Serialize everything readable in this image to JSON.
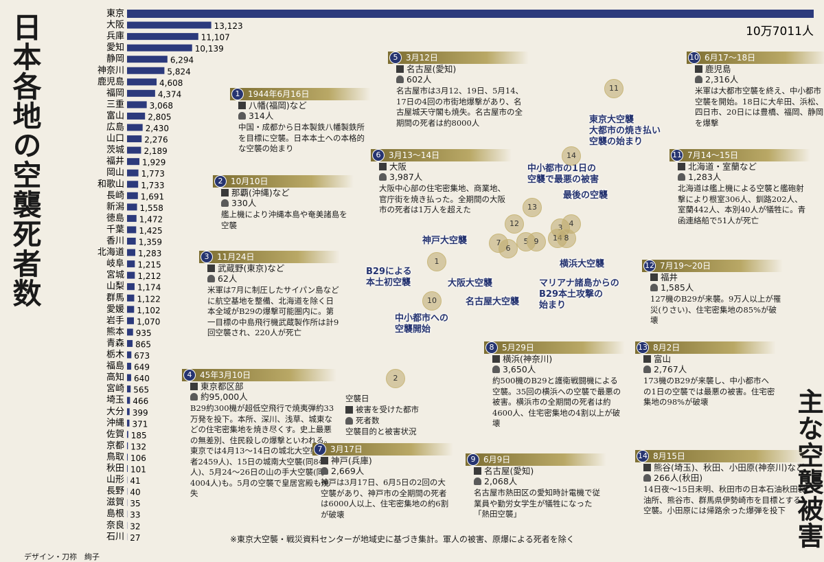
{
  "chart_data": {
    "type": "bar",
    "title": "日本各地の空襲死者数",
    "categories": [
      "東京",
      "大阪",
      "兵庫",
      "愛知",
      "静岡",
      "神奈川",
      "鹿児島",
      "福岡",
      "三重",
      "富山",
      "広島",
      "山口",
      "茨城",
      "福井",
      "岡山",
      "和歌山",
      "長崎",
      "新潟",
      "徳島",
      "千葉",
      "香川",
      "北海道",
      "岐阜",
      "宮城",
      "山梨",
      "群馬",
      "愛媛",
      "岩手",
      "熊本",
      "青森",
      "栃木",
      "福島",
      "高知",
      "宮崎",
      "埼玉",
      "大分",
      "沖縄",
      "佐賀",
      "京都",
      "鳥取",
      "秋田",
      "山形",
      "長野",
      "滋賀",
      "島根",
      "奈良",
      "石川"
    ],
    "values": [
      107011,
      13123,
      11107,
      10139,
      6294,
      5824,
      4608,
      4374,
      3068,
      2805,
      2430,
      2276,
      2189,
      1929,
      1773,
      1733,
      1691,
      1558,
      1472,
      1425,
      1359,
      1283,
      1215,
      1212,
      1174,
      1122,
      1102,
      1070,
      935,
      865,
      673,
      649,
      640,
      565,
      466,
      399,
      371,
      185,
      132,
      106,
      101,
      41,
      40,
      35,
      33,
      32,
      27
    ],
    "value_labels": [
      "10万7011人",
      "13,123",
      "11,107",
      "10,139",
      "6,294",
      "5,824",
      "4,608",
      "4,374",
      "3,068",
      "2,805",
      "2,430",
      "2,276",
      "2,189",
      "1,929",
      "1,773",
      "1,733",
      "1,691",
      "1,558",
      "1,472",
      "1,425",
      "1,359",
      "1,283",
      "1,215",
      "1,212",
      "1,174",
      "1,122",
      "1,102",
      "1,070",
      "935",
      "865",
      "673",
      "649",
      "640",
      "565",
      "466",
      "399",
      "371",
      "185",
      "132",
      "106",
      "101",
      "41",
      "40",
      "35",
      "33",
      "32",
      "27"
    ],
    "color": "#2c3a7c"
  },
  "section_title": "主な空襲被害",
  "raids": [
    {
      "num": "1",
      "date": "1944年6月16日",
      "place": "八幡(福岡)など",
      "deaths": "314人",
      "text": "中国・成都から日本製鉄八幡製鉄所を目標に空襲。日本本土への本格的な空襲の始まり"
    },
    {
      "num": "2",
      "date": "10月10日",
      "place": "那覇(沖縄)など",
      "deaths": "330人",
      "text": "艦上機により沖縄本島や奄美諸島を空襲"
    },
    {
      "num": "3",
      "date": "11月24日",
      "place": "武蔵野(東京)など",
      "deaths": "62人",
      "text": "米軍は7月に制圧したサイパン島などに航空基地を整備、北海道を除く日本全域がB29の爆撃可能圏内に。第一目標の中島飛行機武蔵製作所は計9回空襲され、220人が死亡"
    },
    {
      "num": "4",
      "date": "45年3月10日",
      "place": "東京都区部",
      "deaths": "約95,000人",
      "text": "B29約300機が超低空飛行で焼夷弾約33万発を投下。本所、深川、浅草、城東などの住宅密集地を焼き尽くす。史上最悪の無差別、住民殺しの爆撃といわれる。東京では4月13～14日の城北大空襲(死者2459人)、15日の城南大空襲(同841人)、5月24～26日の山の手大空襲(同4004人)も。5月の空襲で皇居宮殿も焼失"
    },
    {
      "num": "5",
      "date": "3月12日",
      "place": "名古屋(愛知)",
      "deaths": "602人",
      "text": "名古屋市は3月12、19日、5月14、17日の4回の市街地爆撃があり、名古屋城天守閣も焼失。名古屋市の全期間の死者は約8000人"
    },
    {
      "num": "6",
      "date": "3月13～14日",
      "place": "大阪",
      "deaths": "3,987人",
      "text": "大阪中心部の住宅密集地、商業地、官庁街を焼き払った。全期間の大阪市の死者は1万人を超えた"
    },
    {
      "num": "7",
      "date": "3月17日",
      "place": "神戸(兵庫)",
      "deaths": "2,669人",
      "text": "神戸は3月17日、6月5日の2回の大空襲があり、神戸市の全期間の死者は6000人以上、住宅密集地の約6割が破壊"
    },
    {
      "num": "8",
      "date": "5月29日",
      "place": "横浜(神奈川)",
      "deaths": "3,650人",
      "text": "約500機のB29と護衛戦闘機による空襲。35回の横浜への空襲で最悪の被害。横浜市の全期間の死者は約4600人、住宅密集地の4割以上が破壊"
    },
    {
      "num": "9",
      "date": "6月9日",
      "place": "名古屋(愛知)",
      "deaths": "2,068人",
      "text": "名古屋市熱田区の愛知時計電機で従業員や勤労女学生が犠牲になった「熱田空襲」"
    },
    {
      "num": "10",
      "date": "6月17～18日",
      "place": "鹿児島",
      "deaths": "2,316人",
      "text": "米軍は大都市空襲を終え、中小都市空襲を開始。18日に大牟田、浜松、四日市、20日には豊橋、福岡、静岡を爆撃"
    },
    {
      "num": "11",
      "date": "7月14～15日",
      "place": "北海道・室蘭など",
      "deaths": "1,283人",
      "text": "北海道は艦上機による空襲と艦砲射撃により根室306人、釧路202人、室蘭442人、本別40人が犠牲に。青函連絡船で51人が死亡"
    },
    {
      "num": "12",
      "date": "7月19～20日",
      "place": "福井",
      "deaths": "1,585人",
      "text": "127機のB29が来襲。9万人以上が罹災(りさい)、住宅密集地の85%が破壊"
    },
    {
      "num": "13",
      "date": "8月2日",
      "place": "富山",
      "deaths": "2,767人",
      "text": "173機のB29が来襲し、中小都市への1日の空襲では最悪の被害。住宅密集地の98%が破壊"
    },
    {
      "num": "14",
      "date": "8月15日",
      "place": "熊谷(埼玉)、秋田、小田原(神奈川)など",
      "deaths": "266人(秋田)",
      "text": "14日夜～15日未明、秋田市の日本石油秋田製油所、熊谷市、群馬県伊勢崎市を目標とする空襲。小田原には帰路余った爆弾を投下"
    }
  ],
  "map": {
    "labels": [
      {
        "lines": [
          "東京大空襲",
          "大都市の焼き払い",
          "空襲の始まり"
        ]
      },
      {
        "lines": [
          "中小都市の1日の",
          "空襲で最悪の被害"
        ]
      },
      {
        "lines": [
          "最後の空襲"
        ]
      },
      {
        "lines": [
          "神戸大空襲"
        ]
      },
      {
        "lines": [
          "B29による",
          "本土初空襲"
        ]
      },
      {
        "lines": [
          "大阪大空襲"
        ]
      },
      {
        "lines": [
          "名古屋大空襲"
        ]
      },
      {
        "lines": [
          "マリアナ諸島からの",
          "B29本土攻撃の",
          "始まり"
        ]
      },
      {
        "lines": [
          "横浜大空襲"
        ]
      },
      {
        "lines": [
          "中小都市への",
          "空襲開始"
        ]
      }
    ],
    "markers": [
      "11",
      "14",
      "13",
      "12",
      "3",
      "4",
      "14",
      "8",
      "7",
      "6",
      "5",
      "9",
      "1",
      "10",
      "2"
    ]
  },
  "legend": [
    "空襲日",
    "被害を受けた都市",
    "死者数",
    "空襲目的と被害状況"
  ],
  "note": "※東京大空襲・戦災資料センターが地域史に基づき集計。軍人の被害、原爆による死者を除く",
  "credit": "デザイン・刀祢　絢子"
}
